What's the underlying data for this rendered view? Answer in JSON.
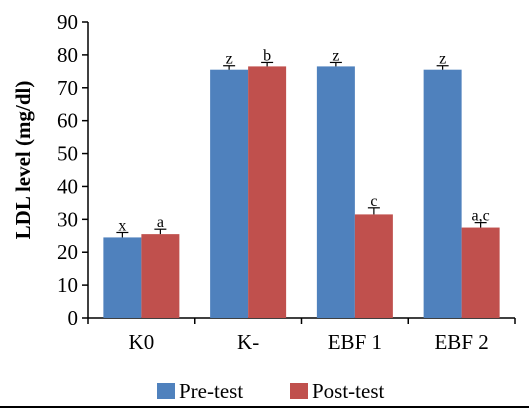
{
  "chart_data": {
    "type": "bar",
    "title": "",
    "xlabel": "",
    "ylabel": "LDL level (mg/dl)",
    "ylim": [
      0,
      90
    ],
    "yticks": [
      0,
      10,
      20,
      30,
      40,
      50,
      60,
      70,
      80,
      90
    ],
    "categories": [
      "K0",
      "K-",
      "EBF 1",
      "EBF 2"
    ],
    "series": [
      {
        "name": "Pre-test",
        "color": "#4f81bd",
        "values": [
          24.5,
          75.5,
          76.5,
          75.5
        ],
        "errors": [
          1.5,
          1.2,
          1.2,
          1.2
        ],
        "annotations": [
          "x",
          "z",
          "z",
          "z"
        ]
      },
      {
        "name": "Post-test",
        "color": "#c0504d",
        "values": [
          25.5,
          76.5,
          31.5,
          27.5
        ],
        "errors": [
          1.5,
          1.2,
          2.0,
          1.5
        ],
        "annotations": [
          "a",
          "b",
          "c",
          "a,c"
        ]
      }
    ],
    "grid": false,
    "legend": "bottom"
  }
}
